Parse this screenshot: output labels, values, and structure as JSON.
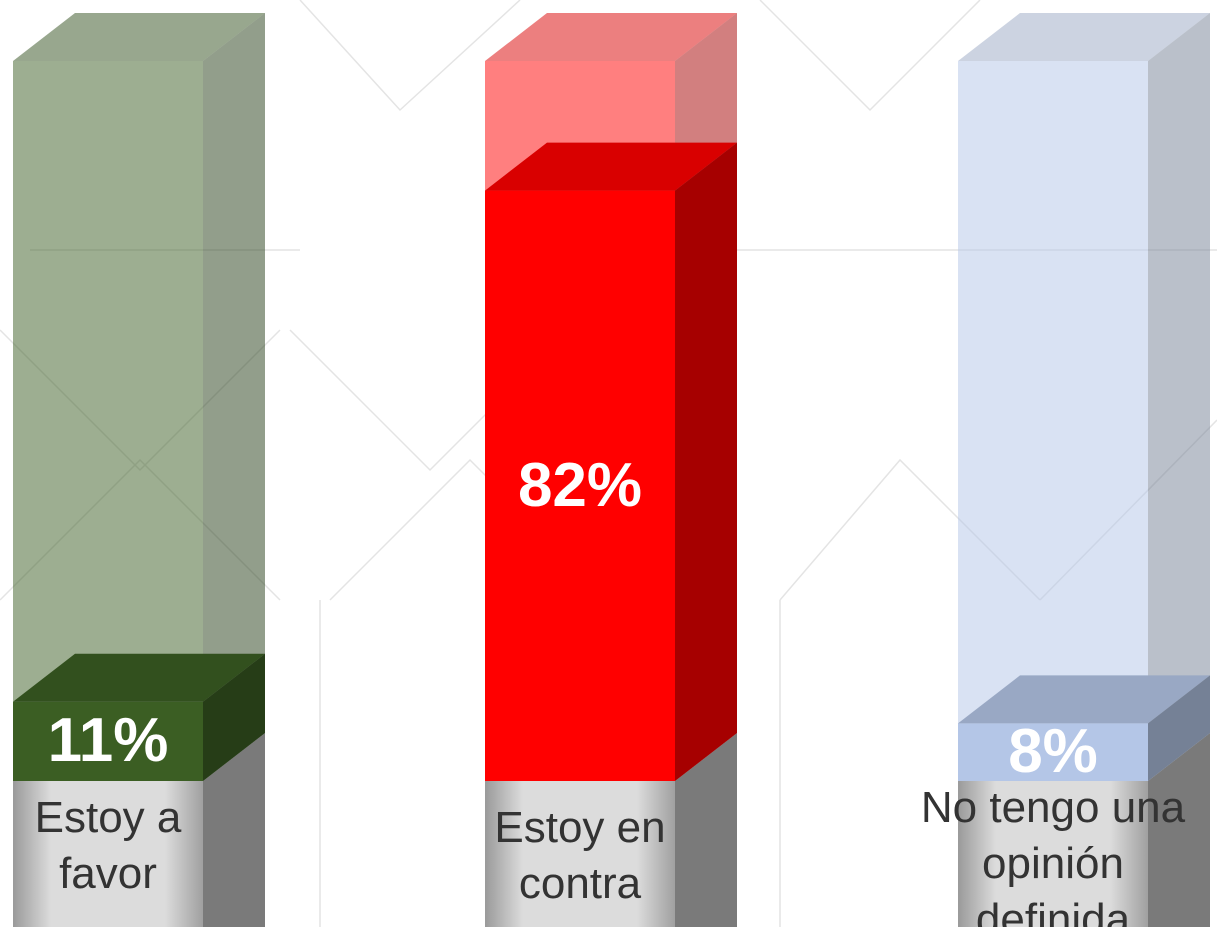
{
  "chart_data": {
    "type": "bar3d",
    "categories": [
      "Estoy a favor",
      "Estoy en contra",
      "No tengo una opinión definida"
    ],
    "values": [
      11,
      82,
      8
    ],
    "value_labels": [
      "11%",
      "82%",
      "8%"
    ],
    "colors": [
      "#3b5e23",
      "#ff0000",
      "#b4c6e7"
    ],
    "ylim": [
      0,
      100
    ]
  }
}
